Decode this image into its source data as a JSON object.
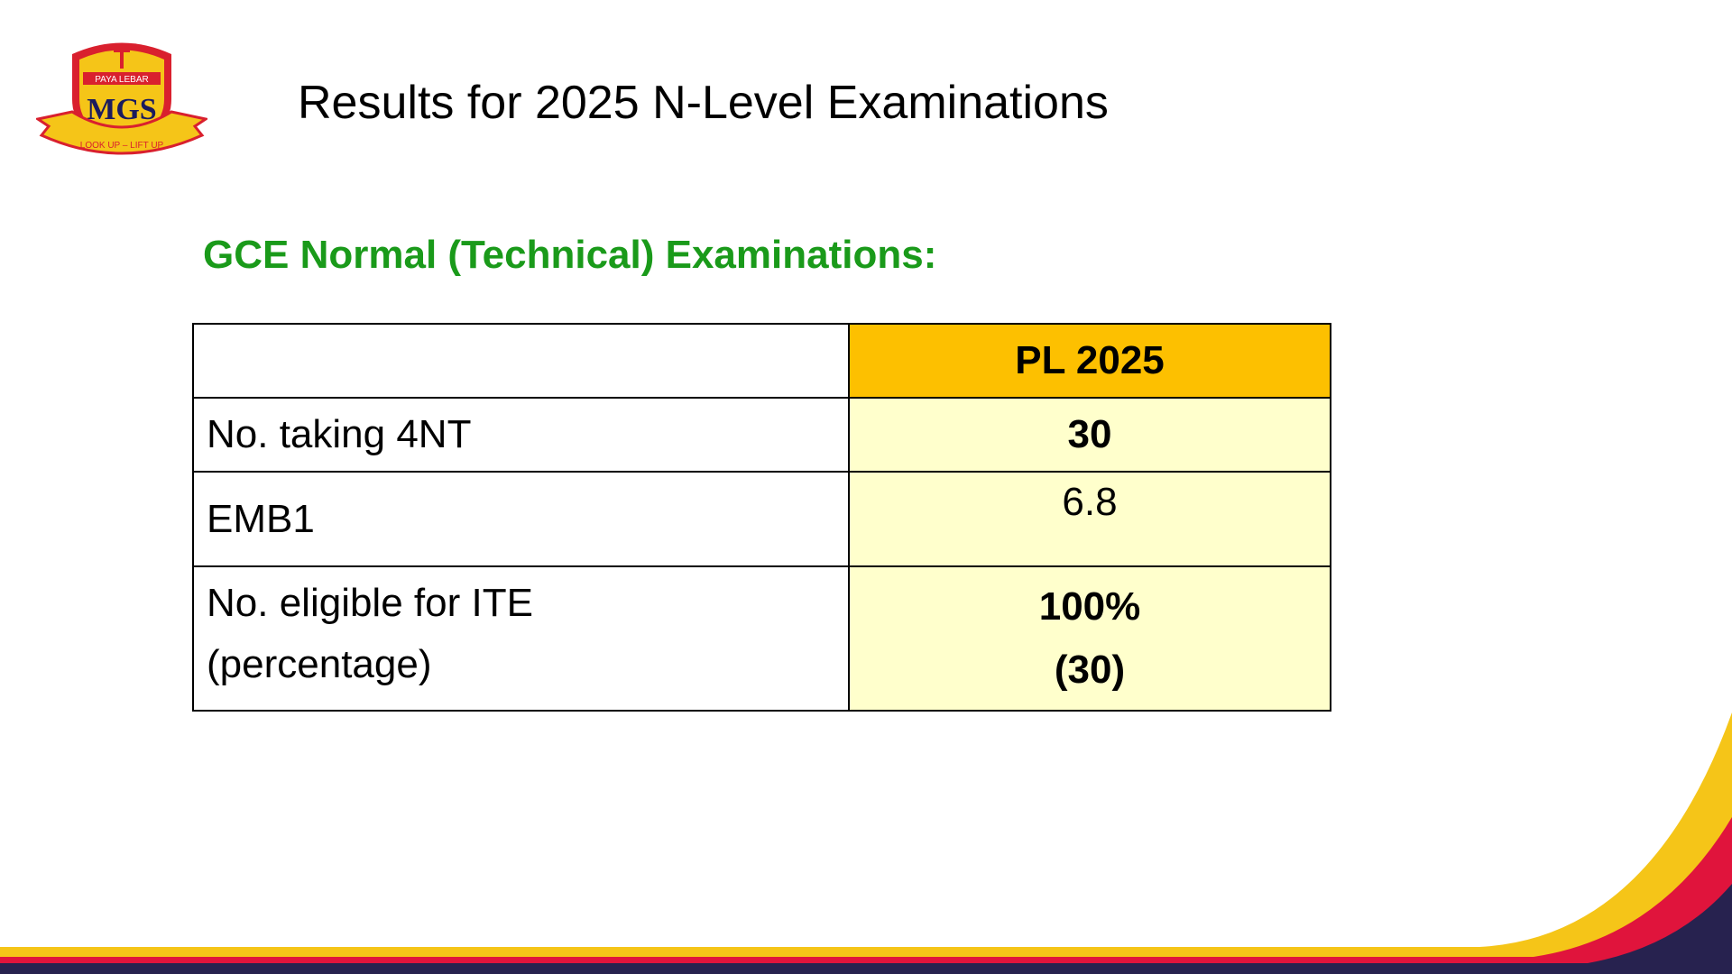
{
  "logo": {
    "top_text": "PAYA LEBAR",
    "initials": "MGS",
    "motto": "LOOK UP – LIFT UP"
  },
  "header": {
    "title": "Results for 2025 N-Level Examinations"
  },
  "subtitle": "GCE Normal (Technical) Examinations:",
  "table": {
    "column_header": "PL 2025",
    "rows": [
      {
        "label": [
          "No. taking 4NT"
        ],
        "value": [
          "30"
        ]
      },
      {
        "label": [
          "EMB1"
        ],
        "value": [
          "6.8"
        ]
      },
      {
        "label": [
          "No. eligible for ITE",
          "(percentage)"
        ],
        "value": [
          "100%",
          "(30)"
        ]
      }
    ]
  }
}
